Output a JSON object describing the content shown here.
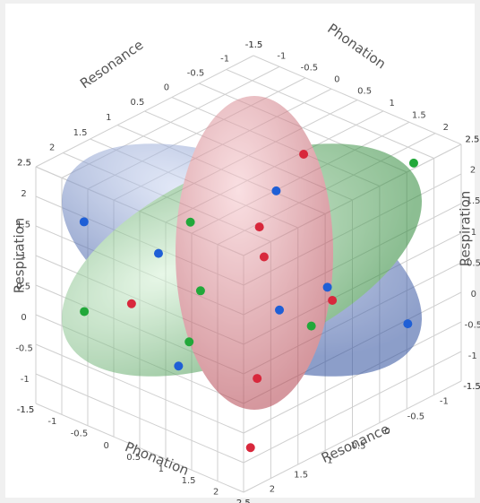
{
  "chart_data": {
    "type": "scatter3d",
    "xlabel": "Phonation",
    "ylabel": "Resonance",
    "zlabel": "Respiration",
    "xlim": [
      -1.5,
      2.5
    ],
    "ylim": [
      -1.5,
      2.5
    ],
    "zlim": [
      -1.5,
      2.5
    ],
    "xticks": [
      -1.5,
      -1,
      -0.5,
      0,
      0.5,
      1,
      1.5,
      2,
      2.5
    ],
    "yticks": [
      -1.5,
      -1,
      -0.5,
      0,
      0.5,
      1,
      1.5,
      2,
      2.5
    ],
    "zticks": [
      -1.5,
      -1,
      -0.5,
      0,
      0.5,
      1,
      1.5,
      2,
      2.5
    ],
    "grid": true,
    "series": [
      {
        "color": "#d8283c",
        "x": [
          0.2,
          0.5,
          0.8,
          -0.6,
          1.4,
          1.9,
          1.8
        ],
        "y": [
          -0.8,
          0.3,
          0.5,
          1.6,
          1.2,
          1.8,
          0.2
        ],
        "z": [
          1.8,
          1.2,
          0.9,
          0.1,
          -0.6,
          -1.3,
          0.4
        ]
      },
      {
        "color": "#1f5fd6",
        "x": [
          -1.2,
          0.3,
          1.2,
          1.6,
          0.2,
          2.1,
          -0.5
        ],
        "y": [
          1.9,
          -0.2,
          0.6,
          0.1,
          1.5,
          -0.9,
          1.2
        ],
        "z": [
          1.4,
          1.5,
          0.2,
          0.5,
          -0.7,
          -0.4,
          0.8
        ]
      },
      {
        "color": "#22a83a",
        "x": [
          1.9,
          -0.2,
          -1.3,
          0.1,
          1.5,
          0.3
        ],
        "y": [
          -1.2,
          0.9,
          1.8,
          1.0,
          0.3,
          1.4
        ],
        "z": [
          2.1,
          1.3,
          -0.2,
          0.3,
          -0.1,
          -0.3
        ]
      }
    ]
  }
}
